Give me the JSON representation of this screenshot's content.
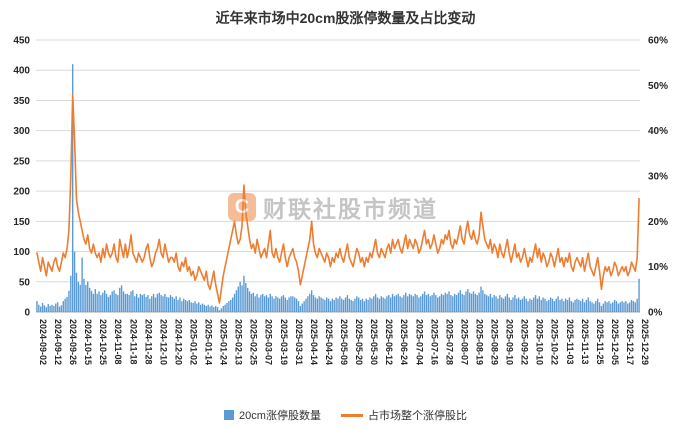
{
  "watermark": {
    "logo_letter": "C",
    "text": "财联社股市频道"
  },
  "colors": {
    "bar": "#5B9BD5",
    "line": "#ED7D31",
    "grid": "#D9D9D9",
    "axis_line": "#A6A6A6",
    "text": "#262626"
  },
  "chart_data": {
    "type": "bar+line combo",
    "title": "近年来市场中20cm股涨停数量及占比变动",
    "legend": [
      {
        "label": "20cm涨停股数量",
        "type": "bar"
      },
      {
        "label": "占市场整个涨停股比",
        "type": "line"
      }
    ],
    "left_axis": {
      "min": 0,
      "max": 450,
      "step": 50,
      "ticks": [
        "0",
        "50",
        "100",
        "150",
        "200",
        "250",
        "300",
        "350",
        "400",
        "450"
      ]
    },
    "right_axis": {
      "min": 0,
      "max": 60,
      "step": 10,
      "unit": "%",
      "ticks": [
        "0%",
        "10%",
        "20%",
        "30%",
        "40%",
        "50%",
        "60%"
      ]
    },
    "x_tick_labels": [
      "2024-09-02",
      "2024-09-12",
      "2024-09-26",
      "2024-10-15",
      "2024-10-25",
      "2024-11-08",
      "2024-11-18",
      "2024-11-28",
      "2024-12-10",
      "2024-12-20",
      "2025-01-02",
      "2025-01-14",
      "2025-01-24",
      "2025-02-13",
      "2025-02-25",
      "2025-03-07",
      "2025-03-19",
      "2025-03-31",
      "2025-04-14",
      "2025-04-24",
      "2025-05-09",
      "2025-05-20",
      "2025-05-30",
      "2025-06-12",
      "2025-06-24",
      "2025-07-04",
      "2025-07-16",
      "2025-07-28",
      "2025-08-07",
      "2025-08-19",
      "2025-08-29",
      "2025-09-10",
      "2025-09-22",
      "2025-10-10",
      "2025-10-22",
      "2025-11-03",
      "2025-11-13",
      "2025-11-25",
      "2025-12-05",
      "2025-12-17",
      "2025-12-29"
    ],
    "points_per_tick": 8,
    "series": [
      {
        "name": "20cm涨停股数量",
        "type": "bar",
        "axis": "left",
        "values": [
          18,
          12,
          9,
          15,
          11,
          8,
          13,
          10,
          12,
          10,
          14,
          16,
          9,
          11,
          18,
          22,
          25,
          35,
          60,
          410,
          100,
          65,
          50,
          45,
          90,
          55,
          45,
          50,
          40,
          35,
          30,
          38,
          30,
          34,
          28,
          32,
          36,
          30,
          25,
          28,
          34,
          36,
          30,
          28,
          40,
          44,
          34,
          30,
          30,
          28,
          34,
          36,
          26,
          30,
          24,
          30,
          28,
          30,
          25,
          28,
          22,
          26,
          30,
          24,
          30,
          32,
          28,
          26,
          30,
          25,
          24,
          28,
          25,
          22,
          26,
          20,
          24,
          18,
          22,
          20,
          18,
          20,
          16,
          15,
          18,
          14,
          16,
          12,
          14,
          12,
          10,
          12,
          9,
          11,
          8,
          10,
          8,
          3,
          6,
          10,
          12,
          15,
          18,
          20,
          24,
          30,
          36,
          42,
          50,
          44,
          60,
          48,
          40,
          34,
          30,
          32,
          26,
          30,
          24,
          28,
          30,
          26,
          28,
          24,
          30,
          26,
          22,
          26,
          24,
          22,
          26,
          28,
          24,
          20,
          24,
          26,
          26,
          24,
          22,
          18,
          10,
          14,
          18,
          22,
          26,
          30,
          36,
          28,
          24,
          22,
          26,
          24,
          22,
          20,
          24,
          22,
          18,
          22,
          20,
          24,
          22,
          26,
          22,
          20,
          24,
          28,
          22,
          20,
          18,
          22,
          26,
          24,
          20,
          22,
          18,
          22,
          20,
          24,
          22,
          26,
          30,
          24,
          22,
          26,
          24,
          22,
          26,
          28,
          24,
          30,
          26,
          28,
          30,
          26,
          24,
          28,
          32,
          26,
          30,
          28,
          26,
          30,
          28,
          24,
          26,
          30,
          34,
          28,
          30,
          26,
          28,
          32,
          28,
          24,
          26,
          30,
          28,
          32,
          30,
          34,
          28,
          26,
          30,
          28,
          32,
          36,
          30,
          28,
          34,
          38,
          32,
          30,
          34,
          30,
          28,
          32,
          42,
          36,
          30,
          28,
          26,
          30,
          24,
          28,
          26,
          22,
          28,
          24,
          22,
          26,
          30,
          24,
          20,
          24,
          28,
          22,
          24,
          20,
          22,
          26,
          22,
          18,
          22,
          20,
          24,
          28,
          22,
          26,
          20,
          24,
          22,
          18,
          20,
          24,
          22,
          18,
          22,
          26,
          20,
          22,
          18,
          22,
          20,
          24,
          18,
          16,
          20,
          22,
          20,
          18,
          22,
          16,
          20,
          24,
          18,
          16,
          14,
          18,
          22,
          16,
          10,
          14,
          18,
          16,
          18,
          14,
          16,
          20,
          18,
          14,
          16,
          18,
          16,
          18,
          14,
          16,
          20,
          18,
          16,
          22,
          55
        ]
      },
      {
        "name": "占市场整个涨停股比",
        "type": "line",
        "axis": "right",
        "unit": "%",
        "values": [
          13,
          11,
          9,
          12,
          10,
          8,
          11,
          10,
          9,
          11,
          12,
          10,
          9,
          11,
          13,
          12,
          14,
          18,
          30,
          48,
          38,
          25,
          22,
          20,
          18,
          16,
          15,
          17,
          14,
          13,
          15,
          13,
          12,
          13,
          11,
          14,
          12,
          15,
          13,
          12,
          13,
          15,
          12,
          11,
          16,
          14,
          12,
          15,
          12,
          14,
          17,
          13,
          12,
          11,
          13,
          12,
          11,
          12,
          14,
          15,
          12,
          10,
          11,
          13,
          14,
          16,
          13,
          12,
          15,
          13,
          11,
          12,
          12,
          11,
          13,
          10,
          9,
          11,
          10,
          12,
          9,
          10,
          8,
          9,
          7,
          8,
          10,
          9,
          8,
          7,
          9,
          6,
          5,
          7,
          9,
          6,
          4,
          2,
          5,
          8,
          10,
          12,
          14,
          16,
          18,
          20,
          17,
          15,
          16,
          19,
          28,
          22,
          19,
          16,
          14,
          15,
          13,
          16,
          14,
          12,
          13,
          14,
          12,
          15,
          18,
          13,
          12,
          14,
          12,
          11,
          13,
          15,
          12,
          10,
          12,
          13,
          14,
          12,
          11,
          9,
          6,
          8,
          10,
          12,
          14,
          16,
          20,
          15,
          13,
          12,
          14,
          13,
          12,
          11,
          13,
          12,
          10,
          12,
          11,
          13,
          12,
          14,
          12,
          11,
          13,
          15,
          12,
          11,
          10,
          12,
          14,
          13,
          11,
          12,
          10,
          12,
          11,
          13,
          12,
          14,
          16,
          13,
          12,
          14,
          13,
          12,
          14,
          15,
          13,
          16,
          14,
          15,
          16,
          14,
          13,
          15,
          17,
          14,
          16,
          15,
          14,
          16,
          15,
          13,
          14,
          16,
          18,
          15,
          16,
          14,
          15,
          17,
          15,
          13,
          14,
          16,
          15,
          17,
          16,
          18,
          15,
          14,
          16,
          15,
          17,
          19,
          16,
          15,
          18,
          20,
          17,
          16,
          18,
          16,
          15,
          17,
          22,
          19,
          16,
          15,
          14,
          16,
          13,
          15,
          14,
          12,
          15,
          13,
          12,
          14,
          16,
          13,
          11,
          13,
          15,
          12,
          13,
          11,
          12,
          14,
          12,
          10,
          12,
          11,
          13,
          15,
          12,
          14,
          11,
          13,
          12,
          10,
          11,
          13,
          12,
          10,
          12,
          14,
          11,
          12,
          10,
          12,
          11,
          13,
          10,
          9,
          11,
          12,
          11,
          10,
          12,
          9,
          11,
          13,
          10,
          9,
          8,
          10,
          12,
          9,
          5,
          8,
          10,
          9,
          10,
          8,
          9,
          11,
          10,
          8,
          9,
          10,
          9,
          10,
          8,
          9,
          11,
          10,
          9,
          12,
          25
        ]
      }
    ]
  }
}
